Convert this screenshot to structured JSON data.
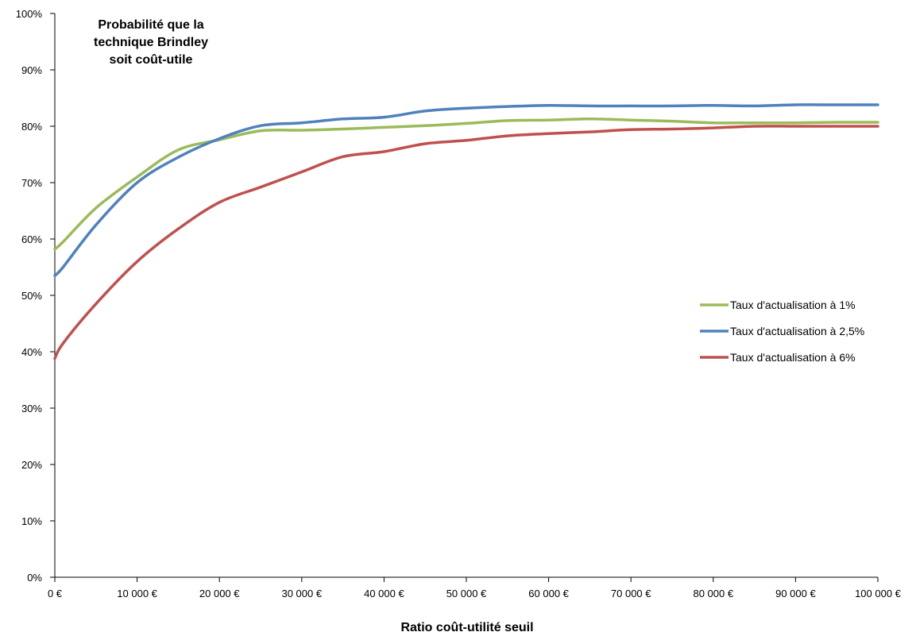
{
  "chart_data": {
    "type": "line",
    "title_lines": [
      "Probabilité que la",
      "technique Brindley",
      "soit coût-utile"
    ],
    "xlabel": "Ratio coût-utilité  seuil",
    "ylabel": "",
    "x": [
      0,
      1000,
      5000,
      10000,
      15000,
      20000,
      25000,
      30000,
      35000,
      40000,
      45000,
      50000,
      55000,
      60000,
      65000,
      70000,
      75000,
      80000,
      85000,
      90000,
      95000,
      100000
    ],
    "x_ticks": [
      0,
      10000,
      20000,
      30000,
      40000,
      50000,
      60000,
      70000,
      80000,
      90000,
      100000
    ],
    "x_tick_labels": [
      "0 €",
      "10 000 €",
      "20 000 €",
      "30 000 €",
      "40 000 €",
      "50 000 €",
      "60 000 €",
      "70 000 €",
      "80 000 €",
      "90 000 €",
      "100 000 €"
    ],
    "xlim": [
      0,
      100000
    ],
    "y_ticks": [
      0,
      10,
      20,
      30,
      40,
      50,
      60,
      70,
      80,
      90,
      100
    ],
    "y_tick_labels": [
      "0%",
      "10%",
      "20%",
      "30%",
      "40%",
      "50%",
      "60%",
      "70%",
      "80%",
      "90%",
      "100%"
    ],
    "ylim": [
      0,
      100
    ],
    "grid": false,
    "legend_position": "right",
    "series": [
      {
        "name": "Taux d'actualisation à 1%",
        "color": "#9BBB59",
        "values": [
          58.2,
          59.5,
          65.5,
          71.0,
          75.8,
          77.6,
          79.2,
          79.3,
          79.5,
          79.8,
          80.1,
          80.5,
          81.0,
          81.1,
          81.3,
          81.1,
          80.9,
          80.6,
          80.6,
          80.6,
          80.7,
          80.7
        ]
      },
      {
        "name": "Taux d'actualisation à 2,5%",
        "color": "#4F81BD",
        "values": [
          53.5,
          55.0,
          62.5,
          70.0,
          74.5,
          77.8,
          80.1,
          80.6,
          81.3,
          81.6,
          82.7,
          83.2,
          83.5,
          83.7,
          83.6,
          83.6,
          83.6,
          83.7,
          83.6,
          83.8,
          83.8,
          83.8
        ]
      },
      {
        "name": "Taux d'actualisation à 6%",
        "color": "#C0504D",
        "values": [
          38.8,
          41.5,
          48.5,
          56.0,
          61.8,
          66.5,
          69.2,
          71.9,
          74.6,
          75.5,
          76.9,
          77.5,
          78.3,
          78.7,
          79.0,
          79.4,
          79.5,
          79.7,
          80.0,
          80.0,
          80.0,
          80.0
        ]
      }
    ]
  }
}
